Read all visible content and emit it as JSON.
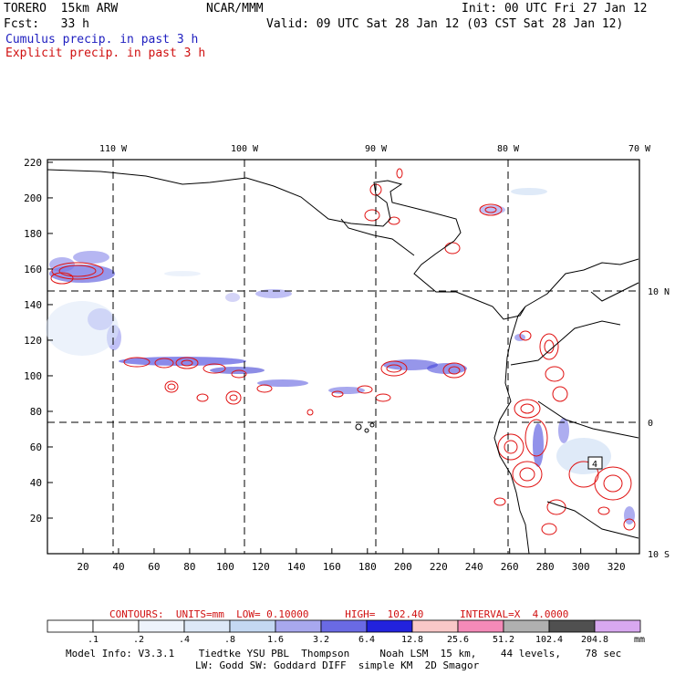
{
  "header": {
    "model": "TORERO  15km ARW",
    "org": "NCAR/MMM",
    "init": "Init: 00 UTC Fri 27 Jan 12",
    "fcst": "Fcst:   33 h",
    "valid": "Valid: 09 UTC Sat 28 Jan 12 (03 CST Sat 28 Jan 12)"
  },
  "legend_top": {
    "cumulus": "Cumulus precip. in past 3 h",
    "explicit": "Explicit precip. in past 3 h"
  },
  "map": {
    "lon_labels": [
      "110 W",
      "100 W",
      "90 W",
      "80 W",
      "70 W"
    ],
    "lat_labels": [
      "10 N",
      "0",
      "10 S"
    ],
    "x_ticks": [
      "20",
      "40",
      "60",
      "80",
      "100",
      "120",
      "140",
      "160",
      "180",
      "200",
      "220",
      "240",
      "260",
      "280",
      "300",
      "320"
    ],
    "y_ticks": [
      "220",
      "200",
      "180",
      "160",
      "140",
      "120",
      "100",
      "80",
      "60",
      "40",
      "20"
    ],
    "box_label": "4"
  },
  "contours": {
    "text": "CONTOURS:  UNITS=mm  LOW= 0.10000      HIGH=  102.40      INTERVAL=X  4.0000"
  },
  "colorbar": {
    "labels": [
      ".1",
      ".2",
      ".4",
      ".8",
      "1.6",
      "3.2",
      "6.4",
      "12.8",
      "25.6",
      "51.2",
      "102.4",
      "204.8"
    ],
    "units": "mm",
    "colors": [
      "#ffffff",
      "#ffffff",
      "#eef3fb",
      "#dde8f7",
      "#c4d8f2",
      "#a8a8ee",
      "#6a6ae4",
      "#2222dd",
      "#f9c8c8",
      "#f48ab8",
      "#b0b0b0",
      "#505050",
      "#d8a8f0"
    ]
  },
  "footer": {
    "line1": "Model Info: V3.3.1    Tiedtke YSU PBL  Thompson     Noah LSM  15 km,    44 levels,    78 sec",
    "line2": "LW: Godd SW: Goddard DIFF  simple KM  2D Smagor"
  }
}
